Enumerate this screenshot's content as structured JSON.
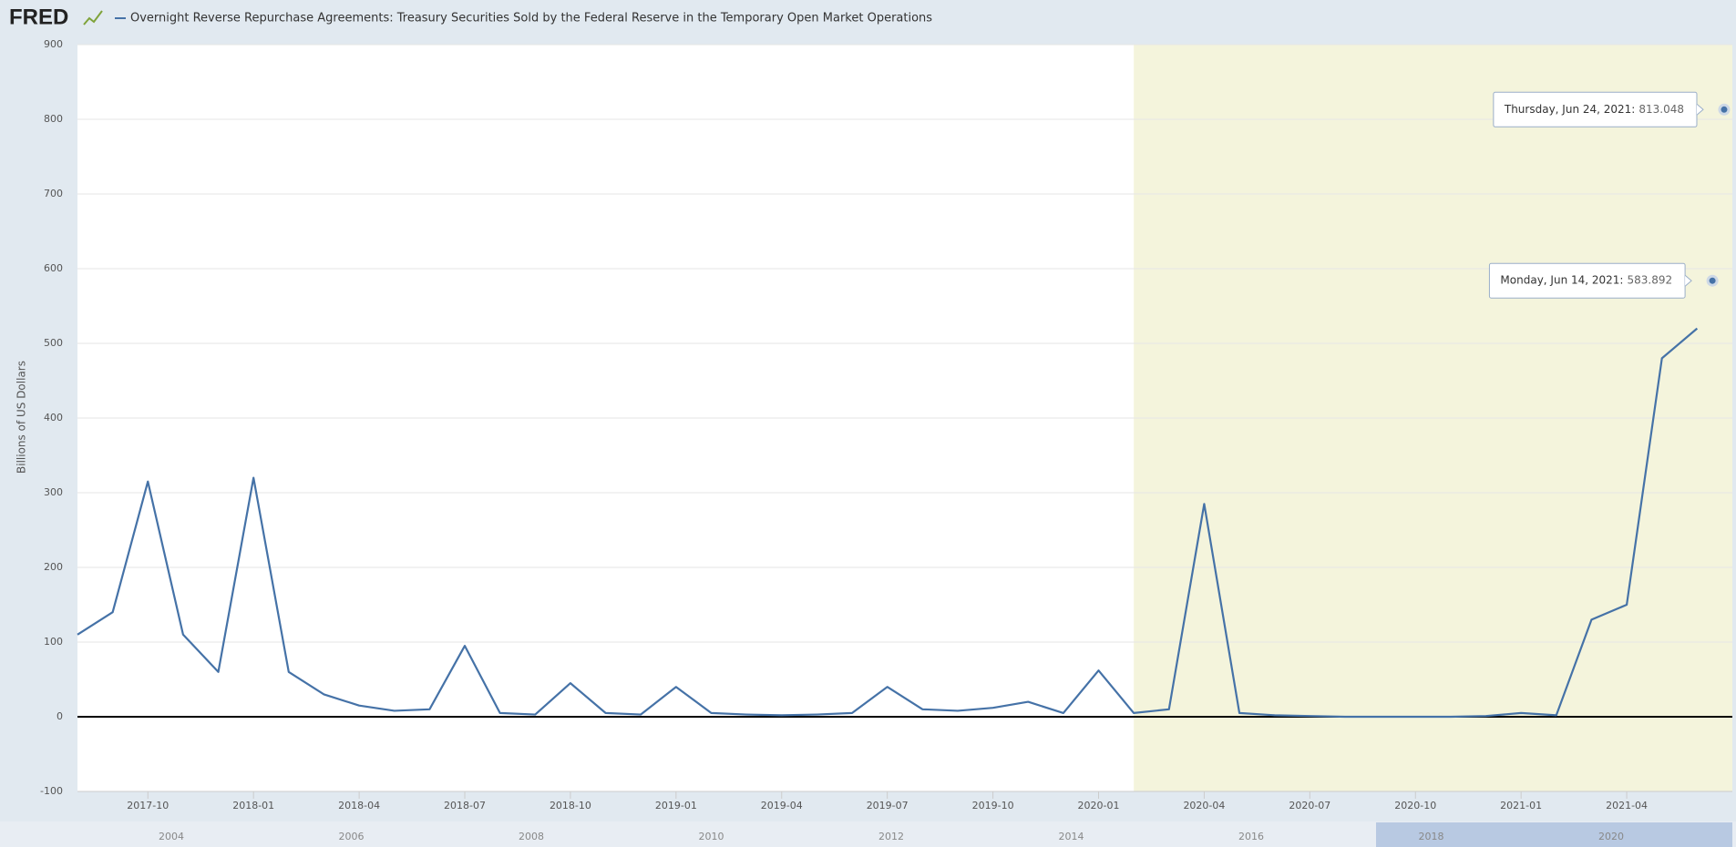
{
  "logo": "FRED",
  "chart_data": {
    "type": "line",
    "title": "Overnight Reverse Repurchase Agreements: Treasury Securities Sold by the Federal Reserve in the Temporary Open Market Operations",
    "y_label": "Billions of US Dollars",
    "x": [
      "2017-08",
      "2017-09",
      "2017-10",
      "2017-11",
      "2017-12",
      "2018-01",
      "2018-02",
      "2018-03",
      "2018-04",
      "2018-05",
      "2018-06",
      "2018-07",
      "2018-08",
      "2018-09",
      "2018-10",
      "2018-11",
      "2018-12",
      "2019-01",
      "2019-02",
      "2019-03",
      "2019-04",
      "2019-05",
      "2019-06",
      "2019-07",
      "2019-08",
      "2019-09",
      "2019-10",
      "2019-11",
      "2019-12",
      "2020-01",
      "2020-02",
      "2020-03",
      "2020-04",
      "2020-05",
      "2020-06",
      "2020-07",
      "2020-08",
      "2020-09",
      "2020-10",
      "2020-11",
      "2020-12",
      "2021-01",
      "2021-02",
      "2021-03",
      "2021-04",
      "2021-05",
      "2021-06"
    ],
    "series": [
      {
        "name": "Overnight Reverse Repurchase Agreements: Treasury Securities Sold by the Federal Reserve in the Temporary Open Market Operations",
        "color": "#4572a7",
        "values": [
          110,
          140,
          315,
          110,
          60,
          320,
          60,
          30,
          15,
          8,
          10,
          95,
          5,
          3,
          45,
          5,
          3,
          40,
          5,
          3,
          2,
          3,
          5,
          40,
          10,
          8,
          12,
          20,
          5,
          62,
          5,
          10,
          285,
          5,
          2,
          1,
          0,
          0,
          0,
          0,
          1,
          5,
          2,
          130,
          150,
          480,
          520
        ]
      }
    ],
    "xlim": [
      "2017-08",
      "2021-07"
    ],
    "xticks": [
      "2017-10",
      "2018-01",
      "2018-04",
      "2018-07",
      "2018-10",
      "2019-01",
      "2019-04",
      "2019-07",
      "2019-10",
      "2020-01",
      "2020-04",
      "2020-07",
      "2020-10",
      "2021-01",
      "2021-04"
    ],
    "ylim": [
      -100,
      900
    ],
    "yticks": [
      -100,
      0,
      100,
      200,
      300,
      400,
      500,
      600,
      700,
      800,
      900
    ],
    "grid": true,
    "shade": {
      "start": "2020-02",
      "end": "2021-07",
      "color": "#f4f4dc"
    },
    "annotations": [
      {
        "x": "2021-06-24",
        "label": "Thursday, Jun 24, 2021:",
        "value": 813.048
      },
      {
        "x": "2021-06-14",
        "label": "Monday, Jun 14, 2021:",
        "value": 583.892
      }
    ],
    "navigator": {
      "labels": [
        "2004",
        "2006",
        "2008",
        "2010",
        "2012",
        "2014",
        "2016",
        "2018",
        "2020"
      ]
    }
  }
}
